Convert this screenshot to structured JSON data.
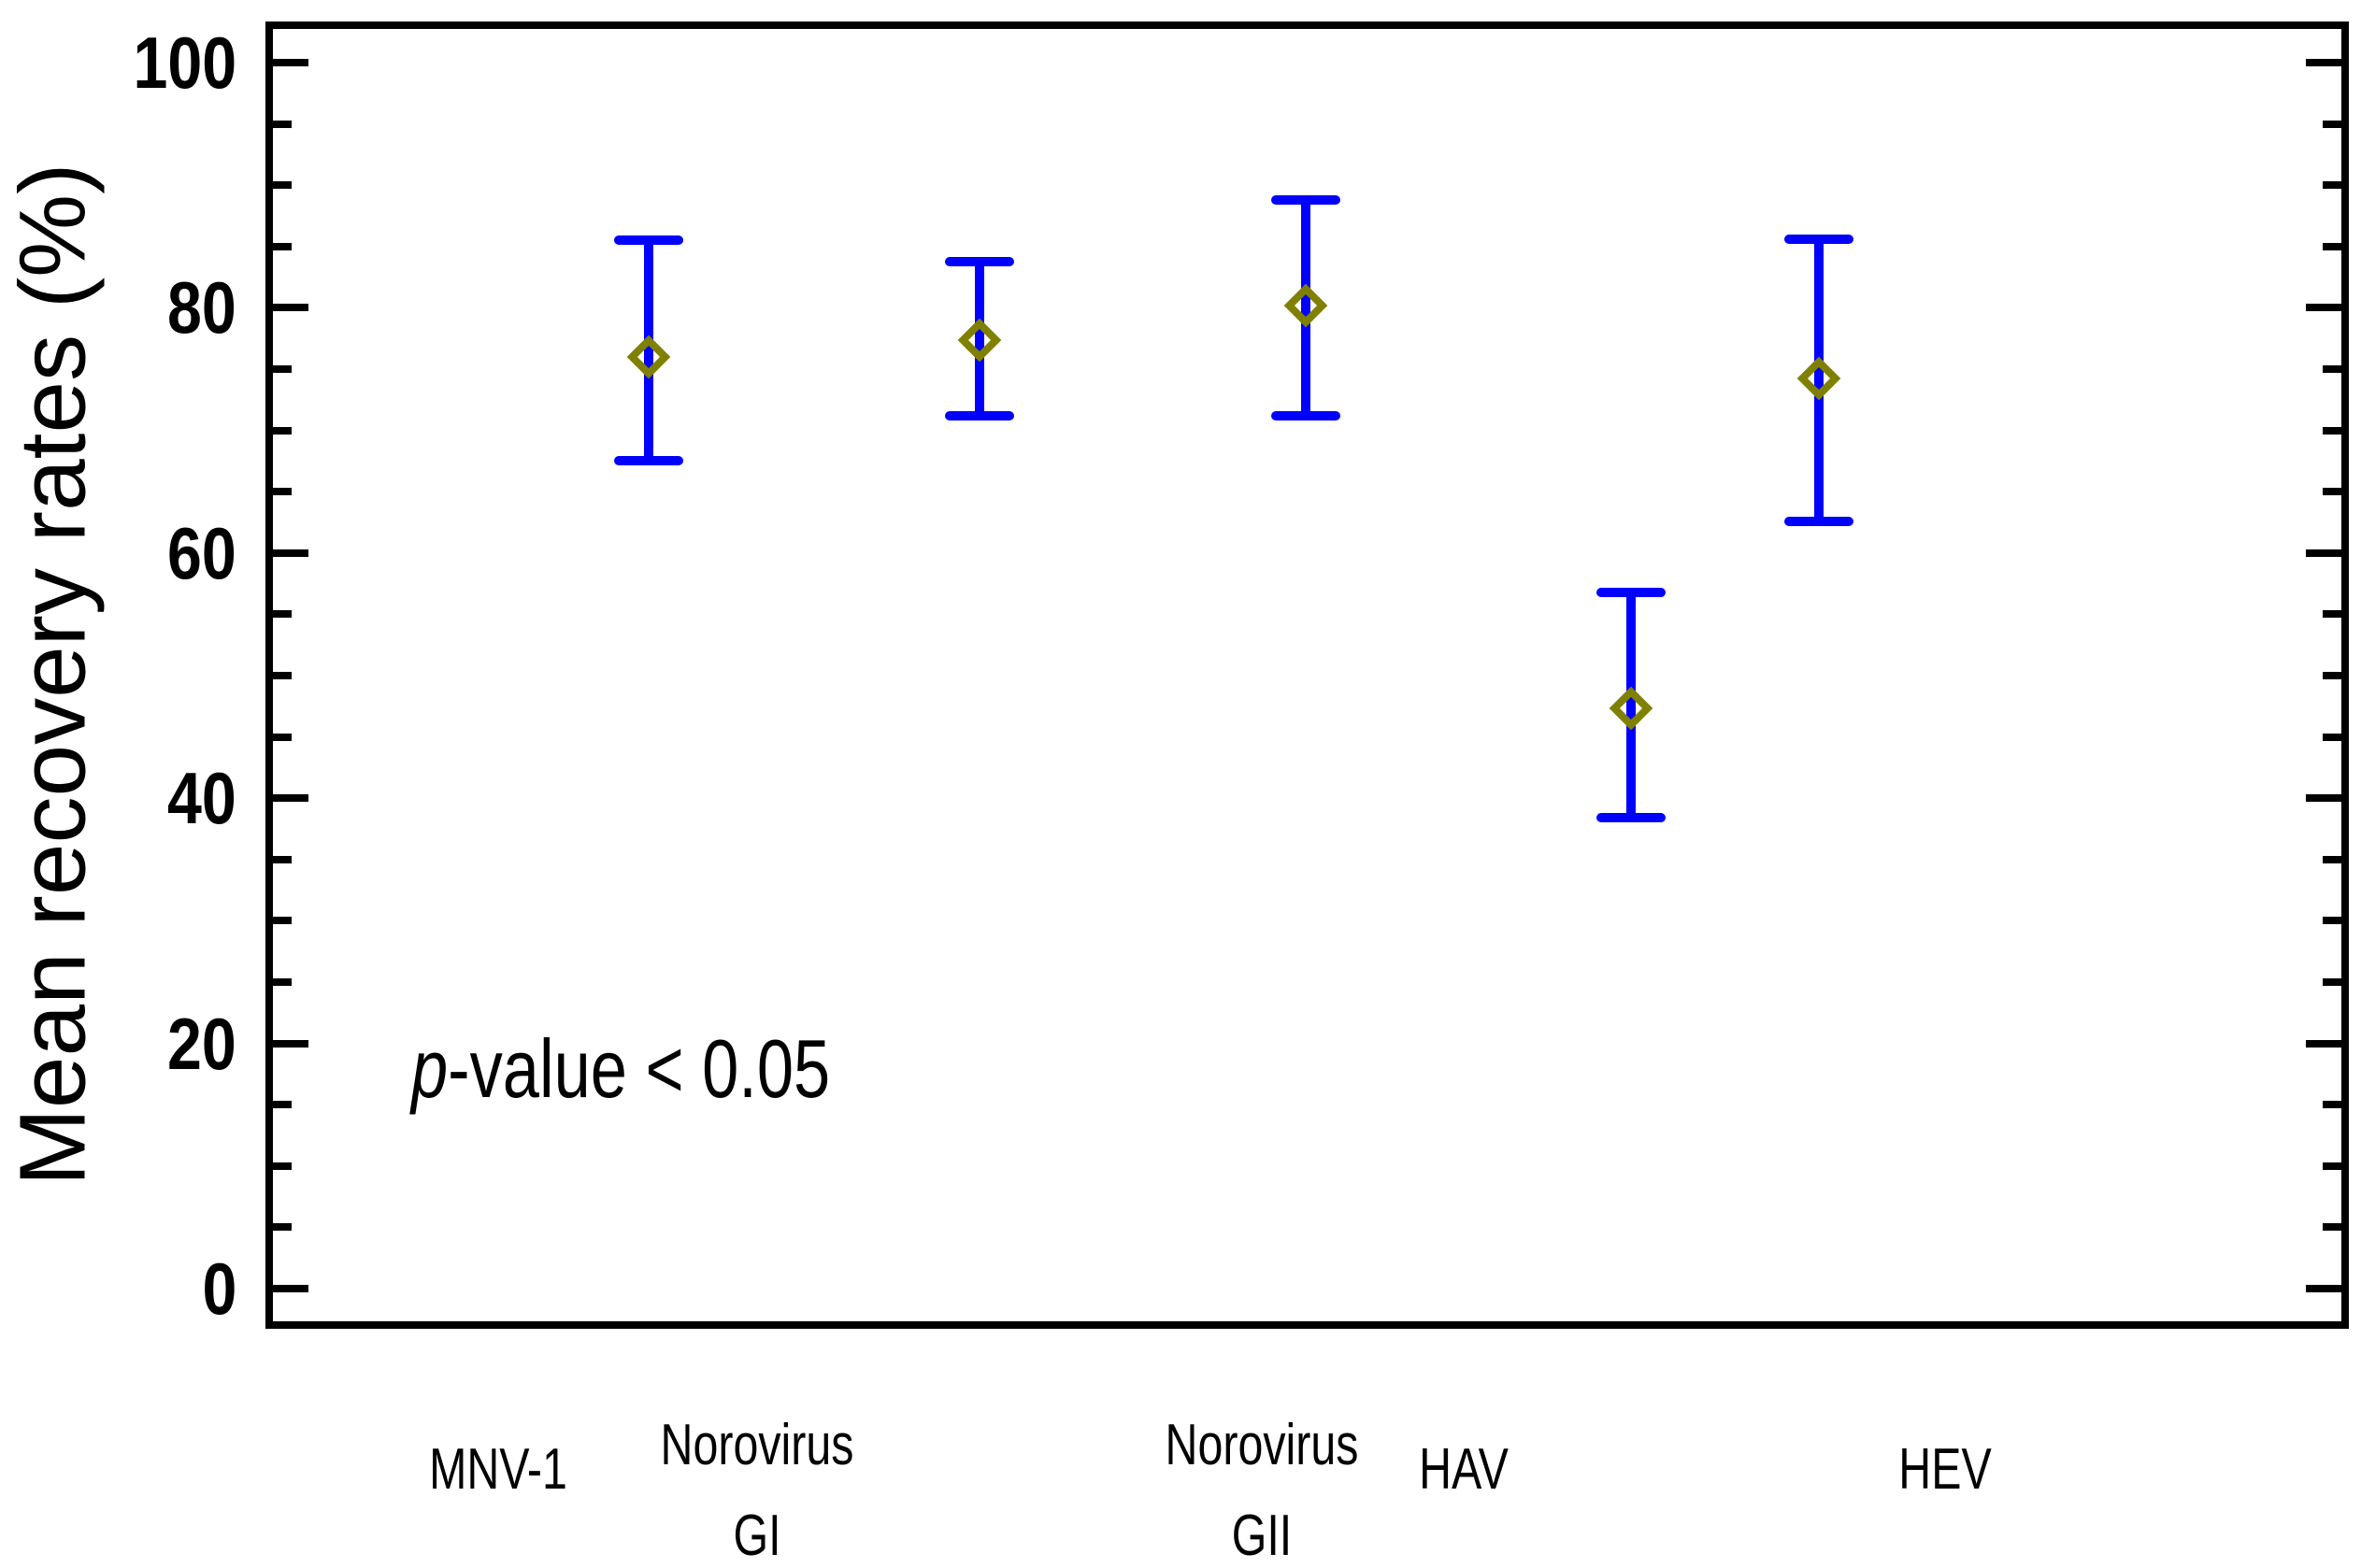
{
  "colors": {
    "errorbar": "#0000ff",
    "marker": "#808000",
    "axis": "#000000",
    "background": "#ffffff"
  },
  "y_axis": {
    "title": "Mean recovery rates (%)"
  },
  "x_axis": {
    "labels": [
      {
        "lines": [
          "MNV-1"
        ]
      },
      {
        "lines": [
          "Norovirus",
          "GI"
        ]
      },
      {
        "lines": [
          "Norovirus",
          "GII"
        ]
      },
      {
        "lines": [
          "HAV"
        ]
      },
      {
        "lines": [
          "HEV"
        ]
      }
    ]
  },
  "annotation": {
    "italic": "p",
    "rest": "-value < 0.05"
  },
  "chart_data": {
    "type": "scatter",
    "title": "",
    "xlabel": "",
    "ylabel": "Mean recovery rates (%)",
    "ylim": [
      0,
      100
    ],
    "y_major_ticks": [
      0,
      20,
      40,
      60,
      80,
      100
    ],
    "y_minor_step": 5,
    "grid": false,
    "legend": "none",
    "marker": "hollow-diamond",
    "marker_color": "#808000",
    "errorbar_color": "#0000ff",
    "annotation": "p-value < 0.05",
    "categories": [
      "MNV-1",
      "Norovirus GI",
      "Norovirus GII",
      "HAV",
      "HEV"
    ],
    "points": [
      {
        "category": "MNV-1",
        "mean": 76.0,
        "upper": 85.5,
        "lower": 67.5
      },
      {
        "category": "Norovirus GI",
        "mean": 77.4,
        "upper": 83.8,
        "lower": 71.2
      },
      {
        "category": "Norovirus GII",
        "mean": 80.2,
        "upper": 88.8,
        "lower": 71.2
      },
      {
        "category": "HAV",
        "mean": 47.3,
        "upper": 56.8,
        "lower": 38.4
      },
      {
        "category": "HEV",
        "mean": 74.2,
        "upper": 85.6,
        "lower": 62.6
      }
    ]
  }
}
